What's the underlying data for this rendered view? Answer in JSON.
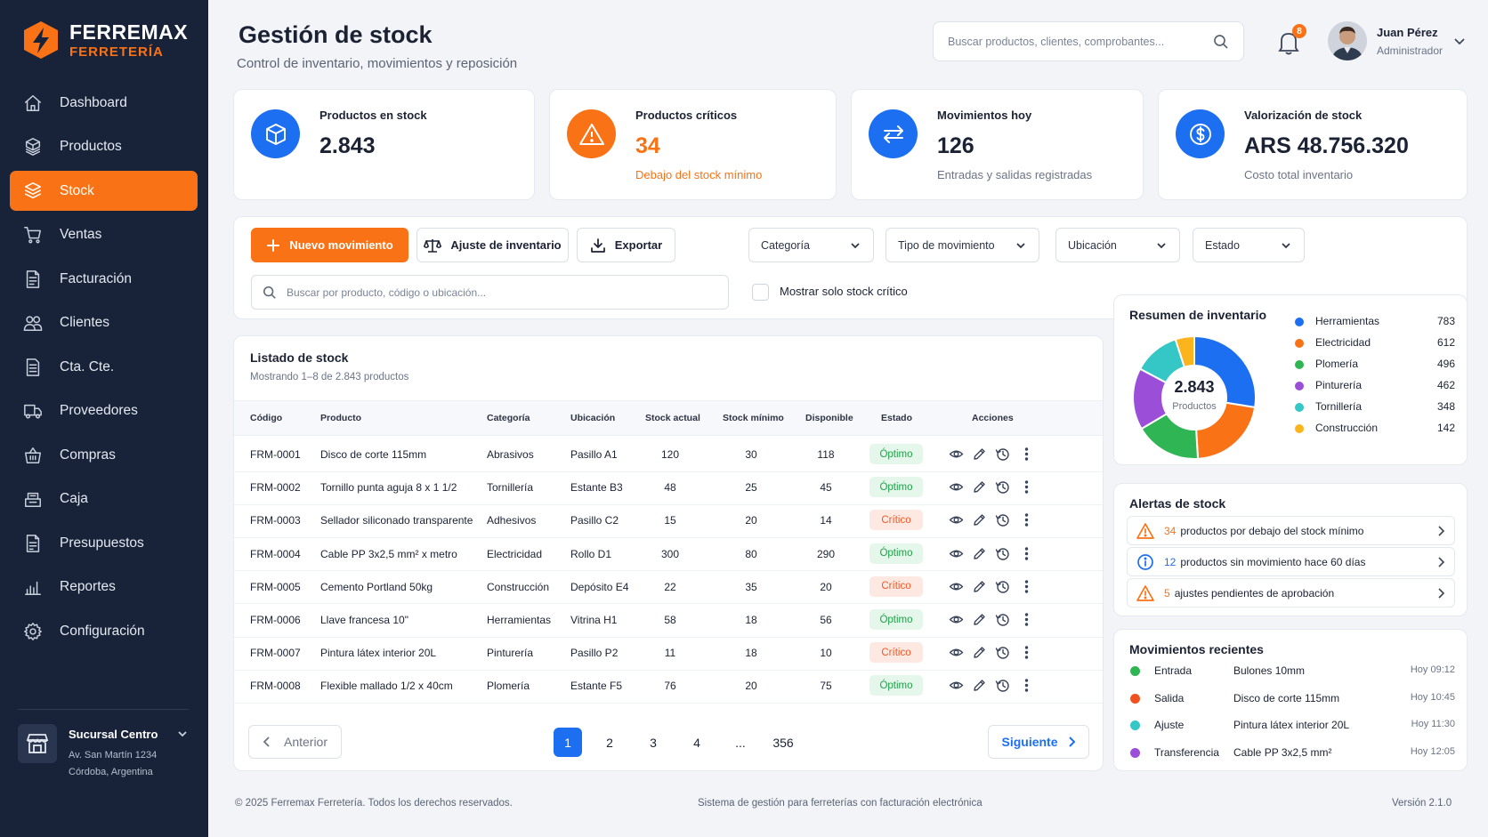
{
  "brand": {
    "name": "FERREMAX",
    "sub": "FERRETERÍA"
  },
  "sidebar": {
    "items": [
      {
        "label": "Dashboard",
        "icon": "home-icon"
      },
      {
        "label": "Productos",
        "icon": "boxes-icon"
      },
      {
        "label": "Stock",
        "icon": "stock-icon",
        "active": true
      },
      {
        "label": "Ventas",
        "icon": "cart-icon"
      },
      {
        "label": "Facturación",
        "icon": "invoice-icon"
      },
      {
        "label": "Clientes",
        "icon": "users-icon"
      },
      {
        "label": "Cta. Cte.",
        "icon": "ledger-icon"
      },
      {
        "label": "Proveedores",
        "icon": "truck-icon"
      },
      {
        "label": "Compras",
        "icon": "basket-icon"
      },
      {
        "label": "Caja",
        "icon": "register-icon"
      },
      {
        "label": "Presupuestos",
        "icon": "quote-icon"
      },
      {
        "label": "Reportes",
        "icon": "bar-chart-icon"
      },
      {
        "label": "Configuración",
        "icon": "gear-icon"
      }
    ],
    "branch": {
      "name": "Sucursal Centro",
      "address1": "Av. San Martín 1234",
      "address2": "Córdoba, Argentina"
    }
  },
  "header": {
    "title": "Gestión de stock",
    "subtitle": "Control de inventario, movimientos y reposición",
    "search_placeholder": "Buscar productos, clientes, comprobantes...",
    "notifications": "8",
    "user_name": "Juan Pérez",
    "user_role": "Administrador"
  },
  "kpis": [
    {
      "label": "Productos en stock",
      "value": "2.843",
      "sub": "",
      "color": "#1d6ff2",
      "icon": "cube-icon"
    },
    {
      "label": "Productos críticos",
      "value": "34",
      "sub": "Debajo del stock mínimo",
      "color": "#f97316",
      "icon": "warning-icon"
    },
    {
      "label": "Movimientos hoy",
      "value": "126",
      "sub": "Entradas y salidas registradas",
      "color": "#1d6ff2",
      "icon": "transfer-icon"
    },
    {
      "label": "Valorización de stock",
      "value": "ARS 48.756.320",
      "sub": "Costo total inventario",
      "color": "#1d6ff2",
      "icon": "dollar-icon"
    }
  ],
  "toolbar": {
    "new_label": "Nuevo movimiento",
    "adjust_label": "Ajuste de inventario",
    "export_label": "Exportar",
    "filters": [
      "Categoría",
      "Tipo de movimiento",
      "Ubicación",
      "Estado"
    ],
    "search_placeholder": "Buscar por producto, código o ubicación...",
    "critical_only_label": "Mostrar solo stock crítico"
  },
  "table": {
    "title": "Listado de stock",
    "subtitle": "Mostrando 1–8 de 2.843 productos",
    "columns": [
      "Código",
      "Producto",
      "Categoría",
      "Ubicación",
      "Stock actual",
      "Stock mínimo",
      "Disponible",
      "Estado",
      "Acciones"
    ],
    "rows": [
      {
        "code": "FRM-0001",
        "product": "Disco de corte 115mm",
        "category": "Abrasivos",
        "location": "Pasillo A1",
        "stock": "120",
        "min": "30",
        "available": "118",
        "status": "Óptimo",
        "status_type": "ok"
      },
      {
        "code": "FRM-0002",
        "product": "Tornillo punta aguja 8 x 1 1/2",
        "category": "Tornillería",
        "location": "Estante B3",
        "stock": "48",
        "min": "25",
        "available": "45",
        "status": "Óptimo",
        "status_type": "ok"
      },
      {
        "code": "FRM-0003",
        "product": "Sellador siliconado transparente",
        "category": "Adhesivos",
        "location": "Pasillo C2",
        "stock": "15",
        "min": "20",
        "available": "14",
        "status": "Crítico",
        "status_type": "crit"
      },
      {
        "code": "FRM-0004",
        "product": "Cable PP 3x2,5 mm² x metro",
        "category": "Electricidad",
        "location": "Rollo D1",
        "stock": "300",
        "min": "80",
        "available": "290",
        "status": "Óptimo",
        "status_type": "ok"
      },
      {
        "code": "FRM-0005",
        "product": "Cemento Portland 50kg",
        "category": "Construcción",
        "location": "Depósito E4",
        "stock": "22",
        "min": "35",
        "available": "20",
        "status": "Crítico",
        "status_type": "crit"
      },
      {
        "code": "FRM-0006",
        "product": "Llave francesa 10\"",
        "category": "Herramientas",
        "location": "Vitrina H1",
        "stock": "58",
        "min": "18",
        "available": "56",
        "status": "Óptimo",
        "status_type": "ok"
      },
      {
        "code": "FRM-0007",
        "product": "Pintura látex interior 20L",
        "category": "Pinturería",
        "location": "Pasillo P2",
        "stock": "11",
        "min": "18",
        "available": "10",
        "status": "Crítico",
        "status_type": "crit"
      },
      {
        "code": "FRM-0008",
        "product": "Flexible mallado 1/2 x 40cm",
        "category": "Plomería",
        "location": "Estante F5",
        "stock": "76",
        "min": "20",
        "available": "75",
        "status": "Óptimo",
        "status_type": "ok"
      }
    ],
    "pagination": {
      "prev": "Anterior",
      "next": "Siguiente",
      "pages": [
        "1",
        "2",
        "3",
        "4",
        "...",
        "356"
      ],
      "current": "1"
    }
  },
  "inventory_summary": {
    "title": "Resumen de inventario",
    "total": "2.843",
    "total_label": "Productos",
    "categories": [
      {
        "name": "Herramientas",
        "value": 783,
        "color": "#1d6ff2"
      },
      {
        "name": "Electricidad",
        "value": 612,
        "color": "#f97316"
      },
      {
        "name": "Plomería",
        "value": 496,
        "color": "#2fb553"
      },
      {
        "name": "Pinturería",
        "value": 462,
        "color": "#9b4fd8"
      },
      {
        "name": "Tornillería",
        "value": 348,
        "color": "#35c6c6"
      },
      {
        "name": "Construcción",
        "value": 142,
        "color": "#fbb41c"
      }
    ]
  },
  "alerts": {
    "title": "Alertas de stock",
    "items": [
      {
        "count": "34",
        "text": "productos por debajo del stock mínimo",
        "icon": "warning-icon",
        "color": "#f97316"
      },
      {
        "count": "12",
        "text": "productos sin movimiento hace 60 días",
        "icon": "info-icon",
        "color": "#1d6ff2"
      },
      {
        "count": "5",
        "text": "ajustes pendientes de aprobación",
        "icon": "warning-icon",
        "color": "#f97316"
      }
    ]
  },
  "recent": {
    "title": "Movimientos recientes",
    "items": [
      {
        "type": "Entrada",
        "product": "Bulones 10mm",
        "time": "Hoy 09:12",
        "color": "#2fb553"
      },
      {
        "type": "Salida",
        "product": "Disco de corte 115mm",
        "time": "Hoy 10:45",
        "color": "#f0521f"
      },
      {
        "type": "Ajuste",
        "product": "Pintura látex interior 20L",
        "time": "Hoy 11:30",
        "color": "#35c6c6"
      },
      {
        "type": "Transferencia",
        "product": "Cable PP 3x2,5 mm²",
        "time": "Hoy 12:05",
        "color": "#9b4fd8"
      }
    ]
  },
  "footer": {
    "copyright": "© 2025 Ferremax Ferretería. Todos los derechos reservados.",
    "tagline": "Sistema de gestión para ferreterías con facturación electrónica",
    "version": "Versión 2.1.0"
  }
}
